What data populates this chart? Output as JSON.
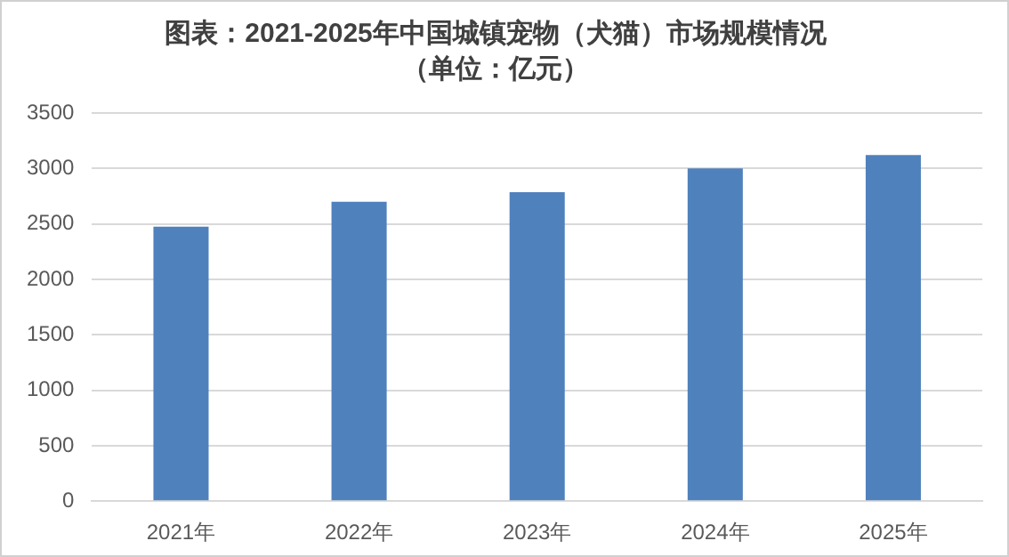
{
  "chart_data": {
    "type": "bar",
    "title": "图表：2021-2025年中国城镇宠物（犬猫）市场规模情况",
    "subtitle": "（单位：亿元）",
    "categories": [
      "2021年",
      "2022年",
      "2023年",
      "2024年",
      "2025年"
    ],
    "values": [
      2475,
      2700,
      2785,
      3000,
      3120
    ],
    "color": "#4f81bd",
    "ylim": [
      0,
      3500
    ],
    "yticks": [
      0,
      500,
      1000,
      1500,
      2000,
      2500,
      3000,
      3500
    ],
    "grid": "y",
    "legend": false
  }
}
